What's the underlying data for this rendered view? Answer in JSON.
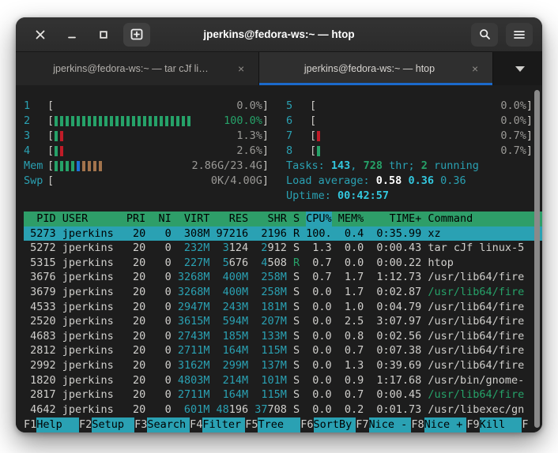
{
  "window": {
    "title": "jperkins@fedora-ws:~ — htop"
  },
  "titlebar": {
    "close_icon": "close",
    "minimize_icon": "minimize",
    "maximize_icon": "maximize",
    "new_tab_icon": "tab-new",
    "search_icon": "search",
    "menu_icon": "menu"
  },
  "tabs": [
    {
      "label": "jperkins@fedora-ws:~ — tar cJf li…",
      "close": "×",
      "active": false
    },
    {
      "label": "jperkins@fedora-ws:~ — htop",
      "close": "×",
      "active": true
    }
  ],
  "htop": {
    "meters_left": [
      {
        "label": "1",
        "bars": [],
        "value": "0.0%",
        "vc": "c-dim"
      },
      {
        "label": "2",
        "bars": [
          {
            "c": "green",
            "n": 25
          }
        ],
        "value": "100.0%",
        "vc": "c-green"
      },
      {
        "label": "3",
        "bars": [
          {
            "c": "green",
            "n": 1
          },
          {
            "c": "red",
            "n": 1
          }
        ],
        "value": "1.3%",
        "vc": "c-dim"
      },
      {
        "label": "4",
        "bars": [
          {
            "c": "green",
            "n": 1
          },
          {
            "c": "red",
            "n": 1
          }
        ],
        "value": "2.6%",
        "vc": "c-dim"
      },
      {
        "label": "Mem",
        "bars": [
          {
            "c": "green",
            "n": 4
          },
          {
            "c": "blue",
            "n": 1
          },
          {
            "c": "orange",
            "n": 4
          }
        ],
        "value": "2.86G/23.4G",
        "vc": "c-dim"
      },
      {
        "label": "Swp",
        "bars": [],
        "value": "0K/4.00G",
        "vc": "c-dim"
      }
    ],
    "meters_right": [
      {
        "label": "5",
        "bars": [],
        "value": "0.0%",
        "vc": "c-dim"
      },
      {
        "label": "6",
        "bars": [],
        "value": "0.0%",
        "vc": "c-dim"
      },
      {
        "label": "7",
        "bars": [
          {
            "c": "red",
            "n": 1
          }
        ],
        "value": "0.7%",
        "vc": "c-dim"
      },
      {
        "label": "8",
        "bars": [
          {
            "c": "green",
            "n": 1
          }
        ],
        "value": "0.7%",
        "vc": "c-dim"
      }
    ],
    "status_lines": [
      {
        "segments": [
          {
            "t": "Tasks: ",
            "c": "c-cyan"
          },
          {
            "t": "143",
            "c": "c-bcyan b"
          },
          {
            "t": ", ",
            "c": "c-cyan"
          },
          {
            "t": "728",
            "c": "c-green b"
          },
          {
            "t": " thr; ",
            "c": "c-cyan"
          },
          {
            "t": "2",
            "c": "c-green b"
          },
          {
            "t": " running",
            "c": "c-cyan"
          }
        ]
      },
      {
        "segments": [
          {
            "t": "Load average: ",
            "c": "c-cyan"
          },
          {
            "t": "0.58 ",
            "c": "c-white b"
          },
          {
            "t": "0.36 ",
            "c": "c-bcyan b"
          },
          {
            "t": "0.36",
            "c": "c-cyan"
          }
        ]
      },
      {
        "segments": [
          {
            "t": "Uptime: ",
            "c": "c-cyan"
          },
          {
            "t": "00:42:57",
            "c": "c-bcyan b"
          }
        ]
      }
    ],
    "table": {
      "headers": [
        "PID",
        "USER",
        "PRI",
        "NI",
        "VIRT",
        "RES",
        "SHR",
        "S",
        "CPU%",
        "MEM%",
        "TIME+",
        "Command"
      ],
      "widths_ch": [
        5,
        9,
        3,
        3,
        5,
        5,
        5,
        1,
        4,
        4,
        8,
        0
      ],
      "aligns": [
        "r",
        "l",
        "r",
        "r",
        "r",
        "r",
        "r",
        "l",
        "r",
        "r",
        "r",
        "l"
      ],
      "sorted_column_index": 8,
      "rows": [
        {
          "selected": true,
          "cells": [
            "5273",
            "jperkins",
            "20",
            "0",
            "308M",
            "97216",
            "2196",
            "R",
            "100.",
            "0.4",
            "0:35.99",
            "xz"
          ]
        },
        {
          "cells": [
            "5272",
            "jperkins",
            "20",
            "0",
            {
              "t": "232M",
              "c": "c-cyan"
            },
            {
              "s": [
                {
                  "t": "3",
                  "c": "c-cyan"
                },
                {
                  "t": "124"
                }
              ]
            },
            {
              "s": [
                {
                  "t": "2",
                  "c": "c-cyan"
                },
                {
                  "t": "912"
                }
              ]
            },
            "S",
            "1.3",
            "0.0",
            "0:00.43",
            "tar cJf linux-5"
          ]
        },
        {
          "cells": [
            "5315",
            "jperkins",
            "20",
            "0",
            {
              "t": "227M",
              "c": "c-cyan"
            },
            {
              "s": [
                {
                  "t": "5",
                  "c": "c-cyan"
                },
                {
                  "t": "676"
                }
              ]
            },
            {
              "s": [
                {
                  "t": "4",
                  "c": "c-cyan"
                },
                {
                  "t": "508"
                }
              ]
            },
            {
              "t": "R",
              "c": "c-green"
            },
            "0.7",
            "0.0",
            "0:00.22",
            "htop"
          ]
        },
        {
          "cells": [
            "3676",
            "jperkins",
            "20",
            "0",
            {
              "t": "3268M",
              "c": "c-cyan"
            },
            {
              "t": "400M",
              "c": "c-cyan"
            },
            {
              "t": "258M",
              "c": "c-cyan"
            },
            "S",
            "0.7",
            "1.7",
            "1:12.73",
            "/usr/lib64/fire"
          ]
        },
        {
          "cells": [
            "3679",
            "jperkins",
            "20",
            "0",
            {
              "t": "3268M",
              "c": "c-cyan"
            },
            {
              "t": "400M",
              "c": "c-cyan"
            },
            {
              "t": "258M",
              "c": "c-cyan"
            },
            "S",
            "0.0",
            "1.7",
            "0:02.87",
            {
              "t": "/usr/lib64/fire",
              "c": "c-green"
            }
          ]
        },
        {
          "cells": [
            "4533",
            "jperkins",
            "20",
            "0",
            {
              "t": "2947M",
              "c": "c-cyan"
            },
            {
              "t": "243M",
              "c": "c-cyan"
            },
            {
              "t": "181M",
              "c": "c-cyan"
            },
            "S",
            "0.0",
            "1.0",
            "0:04.79",
            "/usr/lib64/fire"
          ]
        },
        {
          "cells": [
            "2520",
            "jperkins",
            "20",
            "0",
            {
              "t": "3615M",
              "c": "c-cyan"
            },
            {
              "t": "594M",
              "c": "c-cyan"
            },
            {
              "t": "207M",
              "c": "c-cyan"
            },
            "S",
            "0.0",
            "2.5",
            "3:07.97",
            "/usr/lib64/fire"
          ]
        },
        {
          "cells": [
            "4683",
            "jperkins",
            "20",
            "0",
            {
              "t": "2743M",
              "c": "c-cyan"
            },
            {
              "t": "185M",
              "c": "c-cyan"
            },
            {
              "t": "133M",
              "c": "c-cyan"
            },
            "S",
            "0.0",
            "0.8",
            "0:02.56",
            "/usr/lib64/fire"
          ]
        },
        {
          "cells": [
            "2812",
            "jperkins",
            "20",
            "0",
            {
              "t": "2711M",
              "c": "c-cyan"
            },
            {
              "t": "164M",
              "c": "c-cyan"
            },
            {
              "t": "115M",
              "c": "c-cyan"
            },
            "S",
            "0.0",
            "0.7",
            "0:07.38",
            "/usr/lib64/fire"
          ]
        },
        {
          "cells": [
            "2992",
            "jperkins",
            "20",
            "0",
            {
              "t": "3162M",
              "c": "c-cyan"
            },
            {
              "t": "299M",
              "c": "c-cyan"
            },
            {
              "t": "137M",
              "c": "c-cyan"
            },
            "S",
            "0.0",
            "1.3",
            "0:39.69",
            "/usr/lib64/fire"
          ]
        },
        {
          "cells": [
            "1820",
            "jperkins",
            "20",
            "0",
            {
              "t": "4803M",
              "c": "c-cyan"
            },
            {
              "t": "214M",
              "c": "c-cyan"
            },
            {
              "t": "101M",
              "c": "c-cyan"
            },
            "S",
            "0.0",
            "0.9",
            "1:17.68",
            "/usr/bin/gnome-"
          ]
        },
        {
          "cells": [
            "2817",
            "jperkins",
            "20",
            "0",
            {
              "t": "2711M",
              "c": "c-cyan"
            },
            {
              "t": "164M",
              "c": "c-cyan"
            },
            {
              "t": "115M",
              "c": "c-cyan"
            },
            "S",
            "0.0",
            "0.7",
            "0:00.45",
            {
              "t": "/usr/lib64/fire",
              "c": "c-green"
            }
          ]
        },
        {
          "cells": [
            "4642",
            "jperkins",
            "20",
            "0",
            {
              "t": "601M",
              "c": "c-cyan"
            },
            {
              "s": [
                {
                  "t": "48",
                  "c": "c-cyan"
                },
                {
                  "t": "196"
                }
              ]
            },
            {
              "s": [
                {
                  "t": "37",
                  "c": "c-cyan"
                },
                {
                  "t": "708"
                }
              ]
            },
            "S",
            "0.0",
            "0.2",
            "0:01.73",
            "/usr/libexec/gn"
          ]
        }
      ]
    },
    "function_bar": [
      {
        "key": "F1",
        "label": "Help  "
      },
      {
        "key": "F2",
        "label": "Setup "
      },
      {
        "key": "F3",
        "label": "Search"
      },
      {
        "key": "F4",
        "label": "Filter"
      },
      {
        "key": "F5",
        "label": "Tree  "
      },
      {
        "key": "F6",
        "label": "SortBy"
      },
      {
        "key": "F7",
        "label": "Nice -"
      },
      {
        "key": "F8",
        "label": "Nice +"
      },
      {
        "key": "F9",
        "label": "Kill  "
      },
      {
        "key": "F",
        "label": ""
      }
    ]
  },
  "colors": {
    "accent_blue": "#1b6acb",
    "terminal_bg": "#1d1d1d",
    "terminal_fg": "#d0cfcc",
    "cyan": "#2aa1b3",
    "bright_cyan": "#33c7de",
    "green": "#26a269",
    "red": "#c01c28",
    "orange": "#a2734c",
    "blue": "#1c71d8",
    "header_bg": "#2e9e69",
    "selected_bg": "#2aa1b3"
  }
}
